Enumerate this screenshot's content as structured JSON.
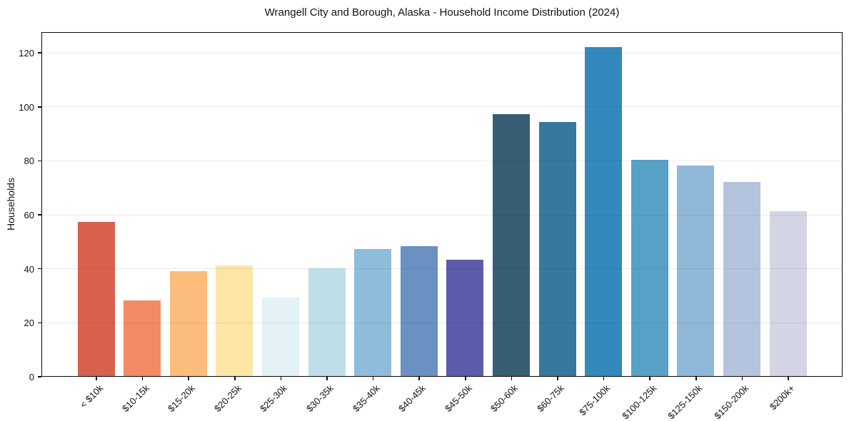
{
  "figure": {
    "background": "#ffffff"
  },
  "chart_data": {
    "type": "bar",
    "title": "Wrangell City and Borough, Alaska - Household Income Distribution (2024)",
    "xlabel": "",
    "ylabel": "Households",
    "categories": [
      "< $10k",
      "$10-15k",
      "$15-20k",
      "$20-25k",
      "$25-30k",
      "$30-35k",
      "$35-40k",
      "$40-45k",
      "$45-50k",
      "$50-60k",
      "$60-75k",
      "$75-100k",
      "$100-125k",
      "$125-150k",
      "$150-200k",
      "$200k+"
    ],
    "values": [
      57,
      28,
      39,
      41,
      29,
      40,
      47,
      48,
      43,
      97,
      94,
      122,
      80,
      78,
      72,
      61
    ],
    "bar_colors": [
      "#d7604f",
      "#f48a63",
      "#fcbc7c",
      "#fde5a6",
      "#e4f1f6",
      "#c0deea",
      "#90bcdb",
      "#6b90c2",
      "#5c5bac",
      "#375e72",
      "#37789d",
      "#3389bd",
      "#57a1c6",
      "#8fb8d8",
      "#b5c4de",
      "#d4d5e4"
    ],
    "yticks": [
      0,
      20,
      40,
      60,
      80,
      100,
      120
    ],
    "ylim": [
      0,
      127.7
    ],
    "grid": "horizontal",
    "legend": "none",
    "spine_color": "#0a0a0a",
    "tick_label_rotation_deg": 45
  }
}
